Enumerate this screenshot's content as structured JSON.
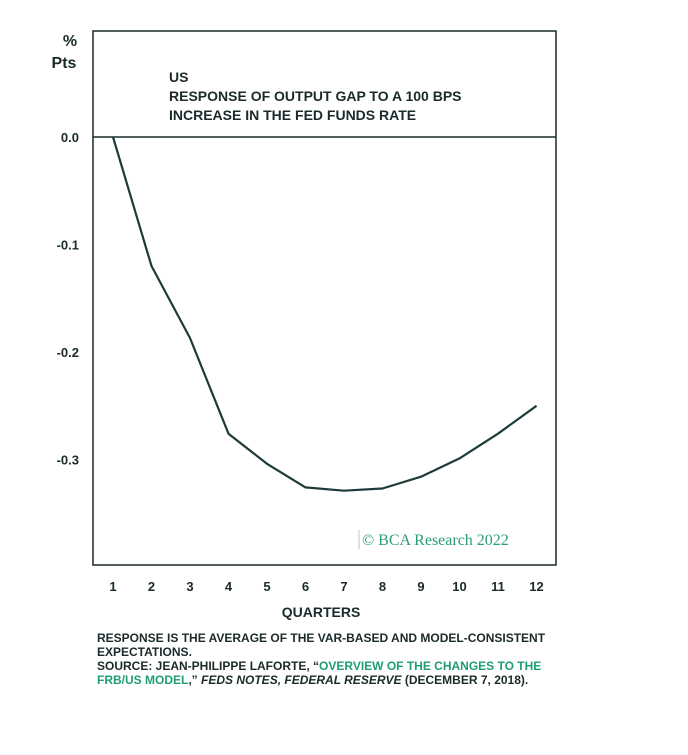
{
  "chart_data": {
    "type": "line",
    "title_lines": [
      "US",
      "RESPONSE OF OUTPUT GAP TO A 100 BPS",
      "INCREASE IN THE FED FUNDS RATE"
    ],
    "ylabel_lines": [
      "%",
      "Pts"
    ],
    "xlabel": "QUARTERS",
    "x": [
      1,
      2,
      3,
      4,
      5,
      6,
      7,
      8,
      9,
      10,
      11,
      12
    ],
    "y_ticks": [
      "0.0",
      "-0.1",
      "-0.2",
      "-0.3"
    ],
    "series": [
      {
        "values": [
          0.0,
          -0.12,
          -0.187,
          -0.276,
          -0.304,
          -0.326,
          -0.329,
          -0.327,
          -0.316,
          -0.299,
          -0.276,
          -0.25
        ]
      }
    ],
    "ylim": [
      -0.4,
      0.1
    ],
    "zero_line": true,
    "line_color": "#1e3a3a"
  },
  "watermark": "© BCA Research 2022",
  "footnote": {
    "line1": "RESPONSE IS THE AVERAGE OF THE VAR-BASED AND MODEL-CONSISTENT EXPECTATIONS.",
    "source_prefix": "SOURCE: JEAN-PHILIPPE LAFORTE, “",
    "source_link": "OVERVIEW OF THE CHANGES TO THE FRB/US MODEL",
    "source_mid": ",” ",
    "source_pub": "FEDS NOTES, FEDERAL RESERVE",
    "source_date": "(DECEMBER 7, 2018)."
  },
  "colors": {
    "accent": "#1f9e72",
    "text": "#1b2a2a"
  }
}
